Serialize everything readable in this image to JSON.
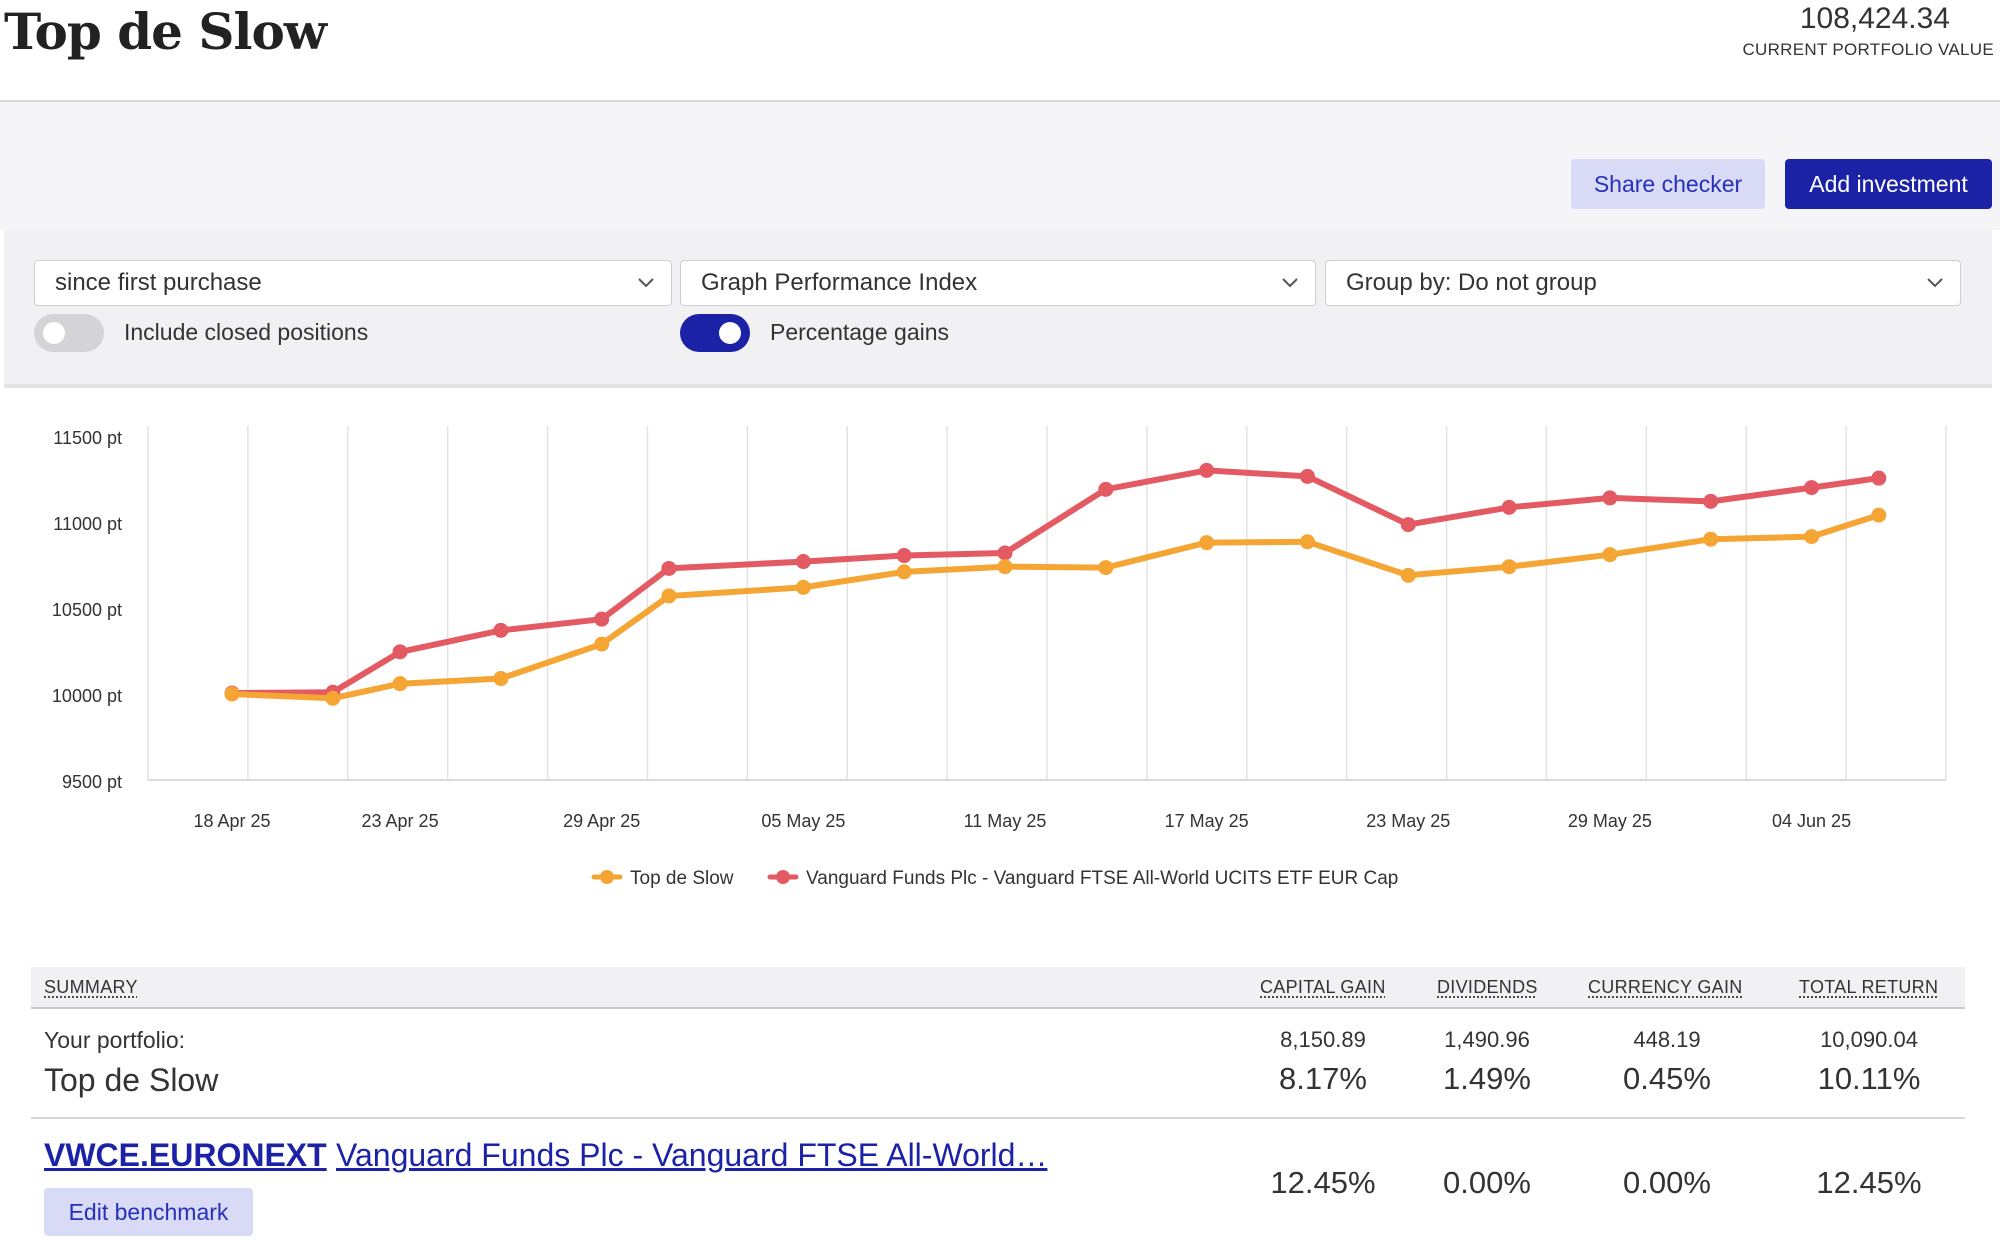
{
  "header": {
    "title": "Top de Slow",
    "portfolio_value": "108,424.34",
    "portfolio_value_label": "CURRENT PORTFOLIO VALUE"
  },
  "actions": {
    "share_checker": "Share checker",
    "add_investment": "Add investment"
  },
  "filters": {
    "period": "since first purchase",
    "graph": "Graph Performance Index",
    "group_by": "Group by: Do not group",
    "include_closed_label": "Include closed positions",
    "include_closed_on": false,
    "percentage_gains_label": "Percentage gains",
    "percentage_gains_on": true
  },
  "colors": {
    "portfolio": "#f5a534",
    "benchmark": "#e45a63",
    "accent": "#1b22a6"
  },
  "chart_data": {
    "type": "line",
    "y_unit": "pt",
    "ylim": [
      9500,
      11500
    ],
    "y_ticks": [
      "11500 pt",
      "11000 pt",
      "10500 pt",
      "10000 pt",
      "9500 pt"
    ],
    "x_tick_labels": [
      "18 Apr 25",
      "23 Apr 25",
      "29 Apr 25",
      "05 May 25",
      "11 May 25",
      "17 May 25",
      "23 May 25",
      "29 May 25",
      "04 Jun 25"
    ],
    "x_range": [
      "18 Apr 25",
      "06 Jun 25"
    ],
    "grid": true,
    "legend_position": "bottom",
    "x": [
      "18 Apr 25",
      "21 Apr 25",
      "23 Apr 25",
      "26 Apr 25",
      "29 Apr 25",
      "01 May 25",
      "05 May 25",
      "08 May 25",
      "11 May 25",
      "14 May 25",
      "17 May 25",
      "20 May 25",
      "23 May 25",
      "26 May 25",
      "29 May 25",
      "01 Jun 25",
      "04 Jun 25",
      "06 Jun 25"
    ],
    "series": [
      {
        "name": "Top de Slow",
        "values": [
          10000,
          9975,
          10060,
          10090,
          10290,
          10570,
          10620,
          10710,
          10740,
          10735,
          10880,
          10885,
          10690,
          10740,
          10810,
          10900,
          10915,
          11040
        ]
      },
      {
        "name": "Vanguard Funds Plc - Vanguard FTSE All-World UCITS ETF EUR Cap",
        "values": [
          10005,
          10010,
          10245,
          10370,
          10435,
          10730,
          10770,
          10805,
          10820,
          11190,
          11300,
          11265,
          10985,
          11085,
          11140,
          11120,
          11200,
          11255
        ]
      }
    ]
  },
  "summary": {
    "heading": "SUMMARY",
    "columns": [
      "CAPITAL GAIN",
      "DIVIDENDS",
      "CURRENCY GAIN",
      "TOTAL RETURN"
    ],
    "portfolio_label": "Your portfolio:",
    "portfolio_name": "Top de Slow",
    "portfolio_amounts": [
      "8,150.89",
      "1,490.96",
      "448.19",
      "10,090.04"
    ],
    "portfolio_pcts": [
      "8.17%",
      "1.49%",
      "0.45%",
      "10.11%"
    ],
    "benchmark_ticker": "VWCE.EURONEXT",
    "benchmark_name": "Vanguard Funds Plc - Vanguard FTSE All-World…",
    "benchmark_pcts": [
      "12.45%",
      "0.00%",
      "0.00%",
      "12.45%"
    ],
    "edit_benchmark": "Edit benchmark"
  }
}
